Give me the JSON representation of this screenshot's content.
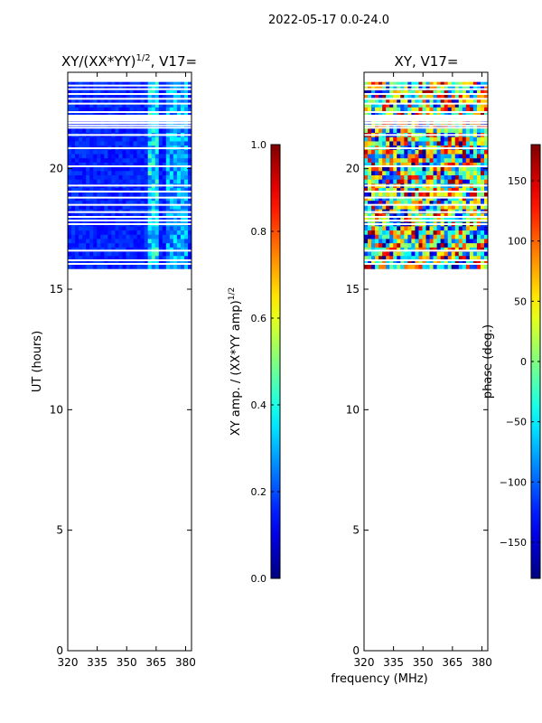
{
  "suptitle": "2022-05-17 0.0-24.0",
  "shared": {
    "xlabel": "frequency (MHz)",
    "ylabel": "UT (hours)",
    "x_ticks": [
      320,
      335,
      350,
      365,
      380
    ],
    "y_ticks": [
      0,
      5,
      10,
      15,
      20
    ],
    "xlim": [
      320,
      383
    ],
    "ylim": [
      0,
      24
    ]
  },
  "chart_data": [
    {
      "type": "heatmap",
      "title": "XY/(XX*YY)^1/2, V17=",
      "title_main": "XY/(XX*YY)",
      "title_exp": "1/2",
      "title_tail": ", V17=",
      "xlabel": "frequency (MHz)",
      "ylabel": "UT (hours)",
      "xlim": [
        320,
        383
      ],
      "ylim": [
        0,
        24
      ],
      "data_time_range": [
        15.85,
        23.6
      ],
      "colormap": "jet",
      "colorbar": {
        "label": "XY amp. / (XX*YY amp)^1/2",
        "label_main": "XY amp. / (XX*YY amp)",
        "label_exp": "1/2",
        "range": [
          0.0,
          1.0
        ],
        "ticks": [
          "0.0",
          "0.2",
          "0.4",
          "0.6",
          "0.8",
          "1.0"
        ],
        "tick_values": [
          0.0,
          0.2,
          0.4,
          0.6,
          0.8,
          1.0
        ]
      }
    },
    {
      "type": "heatmap",
      "title": "XY, V17=",
      "xlabel": "frequency (MHz)",
      "ylabel": "",
      "xlim": [
        320,
        383
      ],
      "ylim": [
        0,
        24
      ],
      "data_time_range": [
        15.85,
        23.6
      ],
      "colormap": "jet",
      "colorbar": {
        "label": "phase (deg.)",
        "range": [
          -180,
          180
        ],
        "ticks": [
          "150",
          "100",
          "50",
          "0",
          "−50",
          "−100",
          "−150"
        ],
        "tick_values": [
          150,
          100,
          50,
          0,
          -50,
          -100,
          -150
        ]
      }
    }
  ],
  "gaps_hours": [
    23.45,
    23.3,
    23.1,
    22.9,
    22.7,
    22.35,
    22.2,
    21.9,
    21.8,
    21.7,
    21.4,
    20.85,
    20.1,
    19.3,
    19.05,
    18.8,
    18.5,
    18.2,
    18.0,
    17.85,
    17.7,
    16.6,
    16.2,
    16.05
  ],
  "gap_band_hours": [
    21.95,
    22.2
  ]
}
